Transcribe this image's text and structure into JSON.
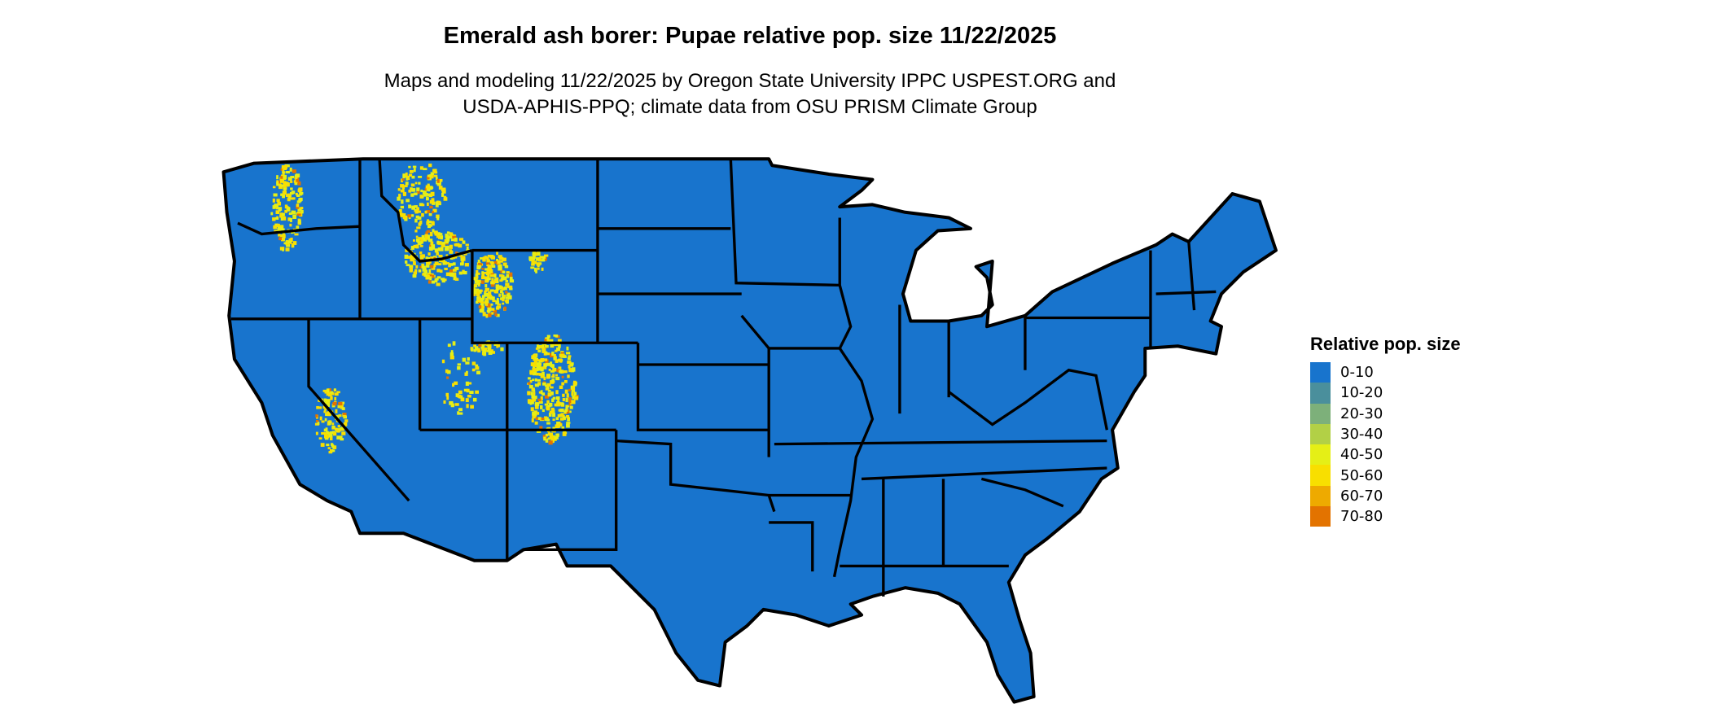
{
  "title": "Emerald ash borer: Pupae relative pop. size 11/22/2025",
  "subtitle": [
    "Maps and modeling 11/22/2025 by Oregon State University IPPC USPEST.ORG and",
    "USDA-APHIS-PPQ; climate data from OSU PRISM Climate Group"
  ],
  "map": {
    "region": "Contiguous United States",
    "base_color": "#1874cd",
    "border_color": "#000000",
    "hotspot_colors": [
      "#e5ef16",
      "#f8df00",
      "#e37300"
    ]
  },
  "legend": {
    "title": "Relative pop. size",
    "items": [
      {
        "label": "0-10",
        "color": "#1874cd"
      },
      {
        "label": "10-20",
        "color": "#4a8f9c"
      },
      {
        "label": "20-30",
        "color": "#7db07a"
      },
      {
        "label": "30-40",
        "color": "#b2d046"
      },
      {
        "label": "40-50",
        "color": "#e5ef16"
      },
      {
        "label": "50-60",
        "color": "#f8df00"
      },
      {
        "label": "60-70",
        "color": "#eeaa00"
      },
      {
        "label": "70-80",
        "color": "#e37300"
      }
    ]
  }
}
